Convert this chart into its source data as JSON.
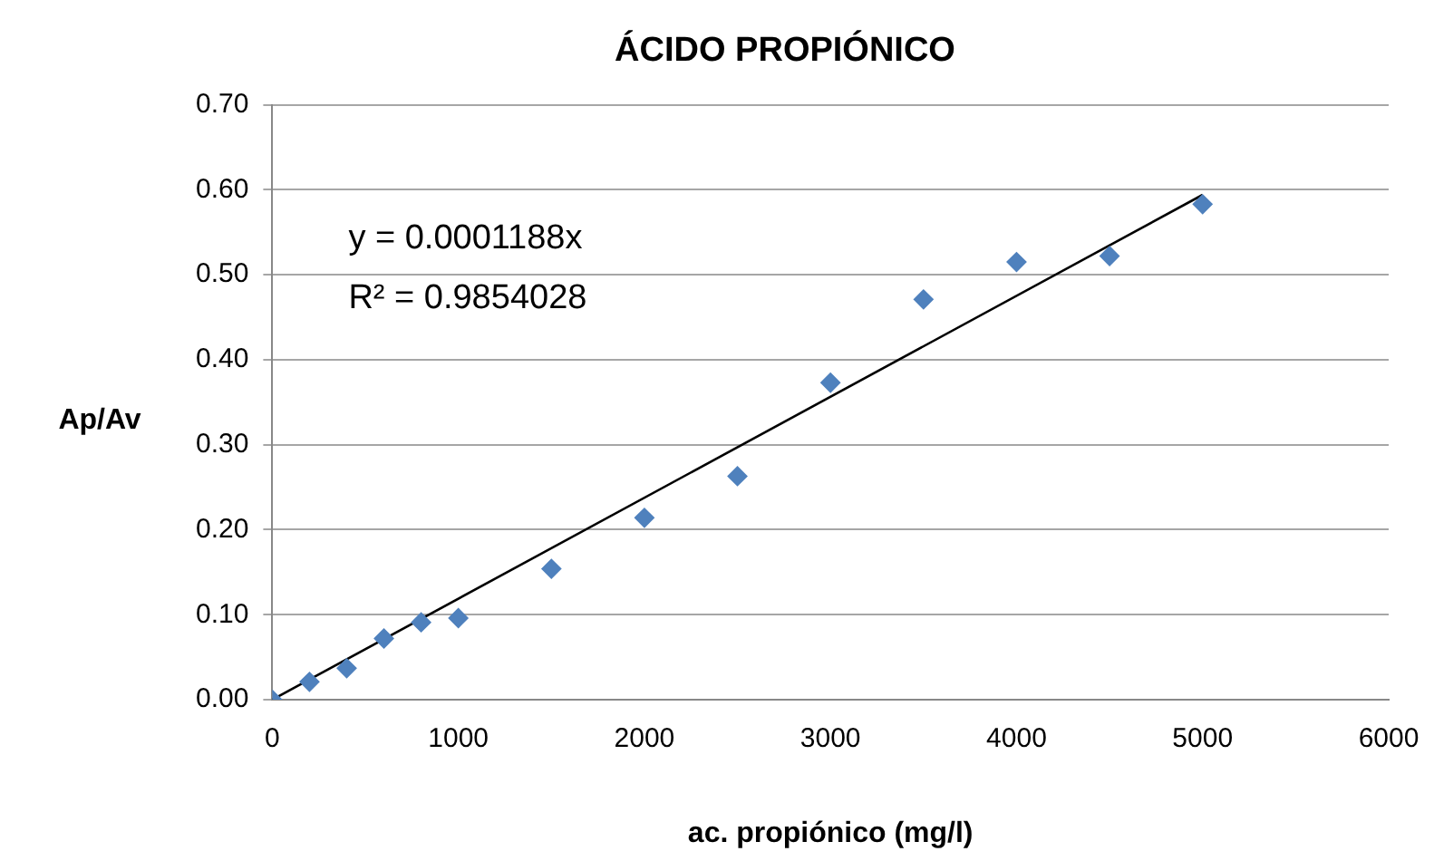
{
  "chart_data": {
    "type": "scatter",
    "title": "ÁCIDO PROPIÓNICO",
    "xlabel": "ac. propiónico (mg/l)",
    "ylabel": "Ap/Av",
    "xlim": [
      0,
      6000
    ],
    "xticks": [
      0,
      1000,
      2000,
      3000,
      4000,
      5000,
      6000
    ],
    "ylim": [
      0,
      0.7
    ],
    "yticks": [
      {
        "value": 0,
        "label": "0.00"
      },
      {
        "value": 0.1,
        "label": "0.10"
      },
      {
        "value": 0.2,
        "label": "0.20"
      },
      {
        "value": 0.3,
        "label": "0.30"
      },
      {
        "value": 0.4,
        "label": "0.40"
      },
      {
        "value": 0.5,
        "label": "0.50"
      },
      {
        "value": 0.6,
        "label": "0.60"
      },
      {
        "value": 0.7,
        "label": "0.70"
      }
    ],
    "grid": "y",
    "legend": false,
    "series": [
      {
        "type": "scatter",
        "marker": "diamond",
        "color": "#4f81bd",
        "x": [
          0,
          200,
          400,
          600,
          800,
          1000,
          1500,
          2000,
          2500,
          3000,
          3500,
          4000,
          4500,
          5000
        ],
        "values": [
          0.0,
          0.021,
          0.037,
          0.072,
          0.091,
          0.096,
          0.154,
          0.214,
          0.263,
          0.373,
          0.471,
          0.515,
          0.522,
          0.583
        ]
      },
      {
        "type": "line",
        "marker": "none",
        "color": "#000000",
        "x": [
          0,
          5000
        ],
        "values": [
          0,
          0.594
        ]
      }
    ],
    "annotations": [
      "y = 0.0001188x",
      "R² = 0.9854028"
    ]
  }
}
